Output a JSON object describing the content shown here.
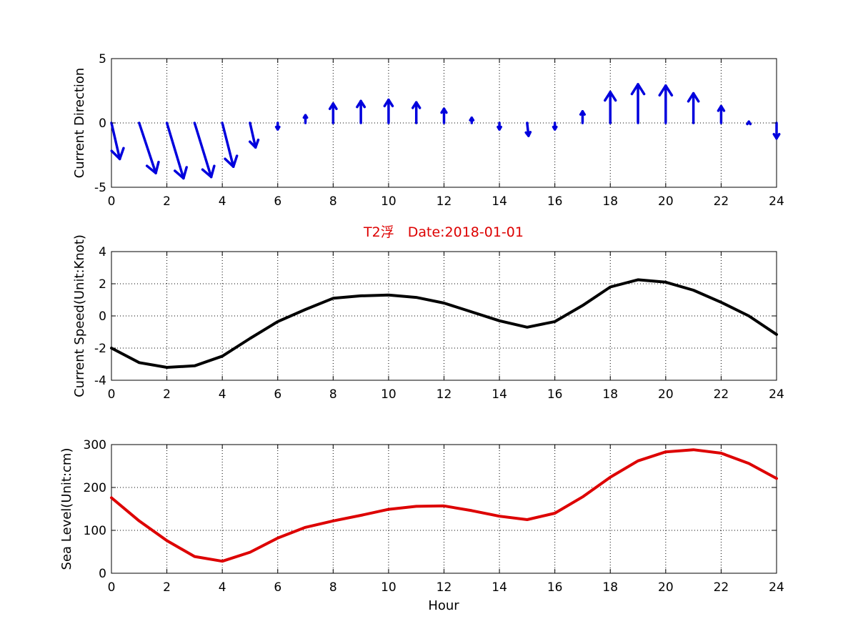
{
  "figure": {
    "title": "T2浮　Date:2018-01-01",
    "title_color": "#dd0000"
  },
  "chart_data": [
    {
      "type": "quiver",
      "ylabel": "Current Direction",
      "xlabel": "",
      "xlim": [
        0,
        24
      ],
      "ylim": [
        -5,
        5
      ],
      "xticks": [
        0,
        2,
        4,
        6,
        8,
        10,
        12,
        14,
        16,
        18,
        20,
        22,
        24
      ],
      "yticks": [
        -5,
        0,
        5
      ],
      "grid": true,
      "color": "#0000dd",
      "vectors": [
        {
          "x": 0,
          "u": 0.3,
          "v": -2.8
        },
        {
          "x": 1,
          "u": 0.6,
          "v": -3.9
        },
        {
          "x": 2,
          "u": 0.6,
          "v": -4.3
        },
        {
          "x": 3,
          "u": 0.6,
          "v": -4.2
        },
        {
          "x": 4,
          "u": 0.4,
          "v": -3.4
        },
        {
          "x": 5,
          "u": 0.2,
          "v": -1.9
        },
        {
          "x": 6,
          "u": 0.0,
          "v": -0.5
        },
        {
          "x": 7,
          "u": 0.0,
          "v": 0.6
        },
        {
          "x": 8,
          "u": 0.0,
          "v": 1.5
        },
        {
          "x": 9,
          "u": 0.0,
          "v": 1.7
        },
        {
          "x": 10,
          "u": 0.0,
          "v": 1.8
        },
        {
          "x": 11,
          "u": 0.0,
          "v": 1.6
        },
        {
          "x": 12,
          "u": 0.0,
          "v": 1.1
        },
        {
          "x": 13,
          "u": 0.0,
          "v": 0.4
        },
        {
          "x": 14,
          "u": 0.0,
          "v": -0.5
        },
        {
          "x": 15,
          "u": 0.05,
          "v": -1.0
        },
        {
          "x": 16,
          "u": 0.0,
          "v": -0.5
        },
        {
          "x": 17,
          "u": 0.0,
          "v": 0.9
        },
        {
          "x": 18,
          "u": 0.0,
          "v": 2.4
        },
        {
          "x": 19,
          "u": 0.0,
          "v": 3.0
        },
        {
          "x": 20,
          "u": 0.0,
          "v": 2.9
        },
        {
          "x": 21,
          "u": 0.0,
          "v": 2.3
        },
        {
          "x": 22,
          "u": 0.0,
          "v": 1.3
        },
        {
          "x": 23,
          "u": 0.0,
          "v": 0.1
        },
        {
          "x": 24,
          "u": 0.0,
          "v": -1.2
        }
      ]
    },
    {
      "type": "line",
      "ylabel": "Current Speed(Unit:Knot)",
      "xlabel": "",
      "xlim": [
        0,
        24
      ],
      "ylim": [
        -4,
        4
      ],
      "xticks": [
        0,
        2,
        4,
        6,
        8,
        10,
        12,
        14,
        16,
        18,
        20,
        22,
        24
      ],
      "yticks": [
        -4,
        -2,
        0,
        2,
        4
      ],
      "grid": true,
      "color": "#000000",
      "x": [
        0,
        1,
        2,
        3,
        4,
        5,
        6,
        7,
        8,
        9,
        10,
        11,
        12,
        13,
        14,
        15,
        16,
        17,
        18,
        19,
        20,
        21,
        22,
        23,
        24
      ],
      "y": [
        -2.0,
        -2.9,
        -3.2,
        -3.1,
        -2.5,
        -1.4,
        -0.35,
        0.4,
        1.1,
        1.25,
        1.3,
        1.15,
        0.8,
        0.25,
        -0.3,
        -0.7,
        -0.35,
        0.65,
        1.8,
        2.25,
        2.1,
        1.6,
        0.85,
        0.0,
        -1.15
      ]
    },
    {
      "type": "line",
      "ylabel": "Sea Level(Unit:cm)",
      "xlabel": "Hour",
      "xlim": [
        0,
        24
      ],
      "ylim": [
        0,
        300
      ],
      "xticks": [
        0,
        2,
        4,
        6,
        8,
        10,
        12,
        14,
        16,
        18,
        20,
        22,
        24
      ],
      "yticks": [
        0,
        100,
        200,
        300
      ],
      "grid": true,
      "color": "#dd0000",
      "x": [
        0,
        1,
        2,
        3,
        4,
        5,
        6,
        7,
        8,
        9,
        10,
        11,
        12,
        13,
        14,
        15,
        16,
        17,
        18,
        19,
        20,
        21,
        22,
        23,
        24
      ],
      "y": [
        176,
        122,
        76,
        39,
        28,
        49,
        82,
        107,
        122,
        135,
        149,
        156,
        157,
        146,
        133,
        125,
        140,
        178,
        224,
        262,
        283,
        288,
        280,
        256,
        221
      ]
    }
  ]
}
